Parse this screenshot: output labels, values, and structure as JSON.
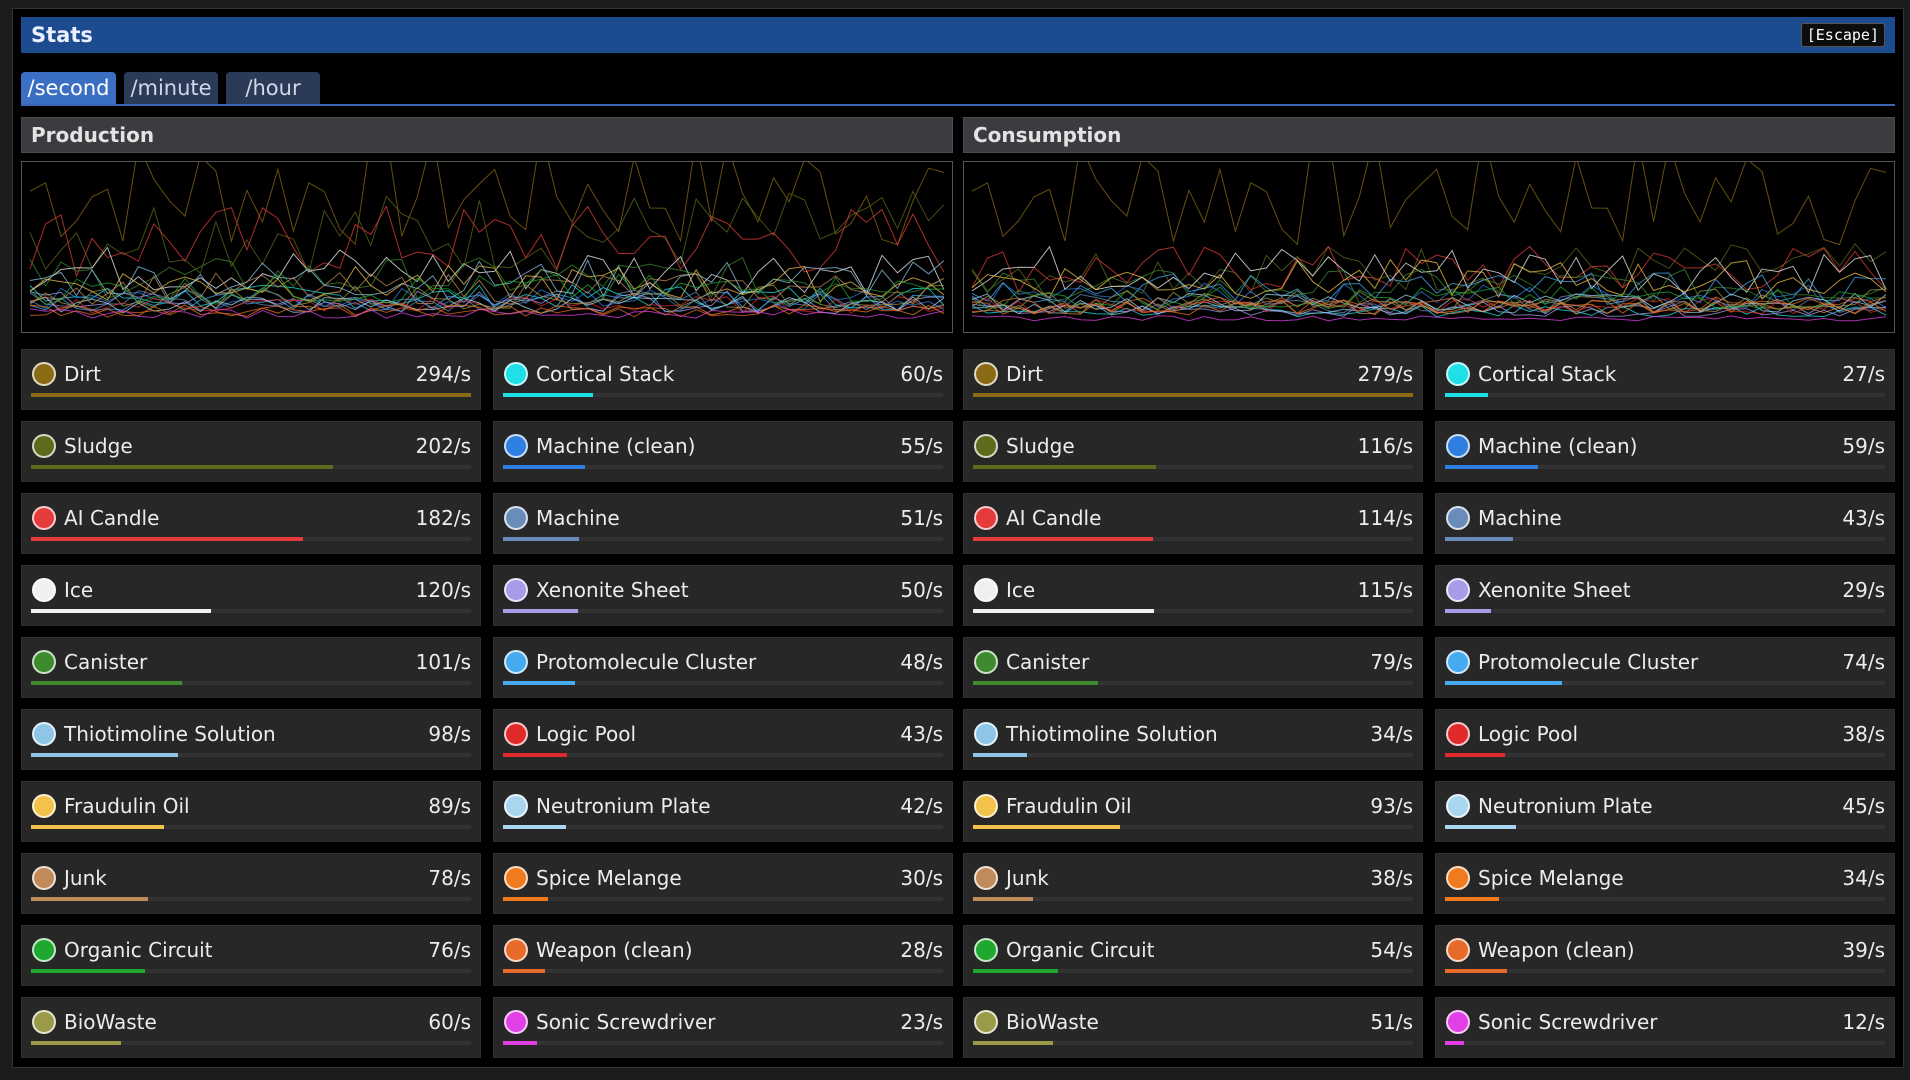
{
  "window": {
    "title": "Stats",
    "close_hint": "[Escape]"
  },
  "tabs": [
    {
      "label": "/second",
      "active": true
    },
    {
      "label": "/minute",
      "active": false
    },
    {
      "label": "/hour",
      "active": false
    }
  ],
  "production": {
    "title": "Production",
    "max": 294,
    "items": [
      {
        "name": "Dirt",
        "rate": "294/s",
        "value": 294,
        "color": "#8a6a14",
        "icon": "dirt-icon"
      },
      {
        "name": "Cortical Stack",
        "rate": "60/s",
        "value": 60,
        "color": "#1ee0e6",
        "icon": "cortical-stack-icon"
      },
      {
        "name": "Sludge",
        "rate": "202/s",
        "value": 202,
        "color": "#5e6a1c",
        "icon": "sludge-icon"
      },
      {
        "name": "Machine (clean)",
        "rate": "55/s",
        "value": 55,
        "color": "#2e7fe0",
        "icon": "machine-clean-icon"
      },
      {
        "name": "AI Candle",
        "rate": "182/s",
        "value": 182,
        "color": "#e53b3b",
        "icon": "ai-candle-icon"
      },
      {
        "name": "Machine",
        "rate": "51/s",
        "value": 51,
        "color": "#6a8cb8",
        "icon": "machine-icon"
      },
      {
        "name": "Ice",
        "rate": "120/s",
        "value": 120,
        "color": "#f0f0f0",
        "icon": "ice-icon"
      },
      {
        "name": "Xenonite Sheet",
        "rate": "50/s",
        "value": 50,
        "color": "#a99be8",
        "icon": "xenonite-sheet-icon"
      },
      {
        "name": "Canister",
        "rate": "101/s",
        "value": 101,
        "color": "#3d8a2f",
        "icon": "canister-icon"
      },
      {
        "name": "Protomolecule Cluster",
        "rate": "48/s",
        "value": 48,
        "color": "#45aaf0",
        "icon": "protomolecule-cluster-icon"
      },
      {
        "name": "Thiotimoline Solution",
        "rate": "98/s",
        "value": 98,
        "color": "#8fc6e8",
        "icon": "thiotimoline-solution-icon"
      },
      {
        "name": "Logic Pool",
        "rate": "43/s",
        "value": 43,
        "color": "#e02a2a",
        "icon": "logic-pool-icon"
      },
      {
        "name": "Fraudulin Oil",
        "rate": "89/s",
        "value": 89,
        "color": "#f2c24a",
        "icon": "fraudulin-oil-icon"
      },
      {
        "name": "Neutronium Plate",
        "rate": "42/s",
        "value": 42,
        "color": "#a8d6ee",
        "icon": "neutronium-plate-icon"
      },
      {
        "name": "Junk",
        "rate": "78/s",
        "value": 78,
        "color": "#c08a5a",
        "icon": "junk-icon"
      },
      {
        "name": "Spice Melange",
        "rate": "30/s",
        "value": 30,
        "color": "#f07a1e",
        "icon": "spice-melange-icon"
      },
      {
        "name": "Organic Circuit",
        "rate": "76/s",
        "value": 76,
        "color": "#1fa82f",
        "icon": "organic-circuit-icon"
      },
      {
        "name": "Weapon (clean)",
        "rate": "28/s",
        "value": 28,
        "color": "#e86a2a",
        "icon": "weapon-clean-icon"
      },
      {
        "name": "BioWaste",
        "rate": "60/s",
        "value": 60,
        "color": "#9a9a48",
        "icon": "biowaste-icon"
      },
      {
        "name": "Sonic Screwdriver",
        "rate": "23/s",
        "value": 23,
        "color": "#e040e6",
        "icon": "sonic-screwdriver-icon"
      }
    ]
  },
  "consumption": {
    "title": "Consumption",
    "max": 279,
    "items": [
      {
        "name": "Dirt",
        "rate": "279/s",
        "value": 279,
        "color": "#8a6a14",
        "icon": "dirt-icon"
      },
      {
        "name": "Cortical Stack",
        "rate": "27/s",
        "value": 27,
        "color": "#1ee0e6",
        "icon": "cortical-stack-icon"
      },
      {
        "name": "Sludge",
        "rate": "116/s",
        "value": 116,
        "color": "#5e6a1c",
        "icon": "sludge-icon"
      },
      {
        "name": "Machine (clean)",
        "rate": "59/s",
        "value": 59,
        "color": "#2e7fe0",
        "icon": "machine-clean-icon"
      },
      {
        "name": "AI Candle",
        "rate": "114/s",
        "value": 114,
        "color": "#e53b3b",
        "icon": "ai-candle-icon"
      },
      {
        "name": "Machine",
        "rate": "43/s",
        "value": 43,
        "color": "#6a8cb8",
        "icon": "machine-icon"
      },
      {
        "name": "Ice",
        "rate": "115/s",
        "value": 115,
        "color": "#f0f0f0",
        "icon": "ice-icon"
      },
      {
        "name": "Xenonite Sheet",
        "rate": "29/s",
        "value": 29,
        "color": "#a99be8",
        "icon": "xenonite-sheet-icon"
      },
      {
        "name": "Canister",
        "rate": "79/s",
        "value": 79,
        "color": "#3d8a2f",
        "icon": "canister-icon"
      },
      {
        "name": "Protomolecule Cluster",
        "rate": "74/s",
        "value": 74,
        "color": "#45aaf0",
        "icon": "protomolecule-cluster-icon"
      },
      {
        "name": "Thiotimoline Solution",
        "rate": "34/s",
        "value": 34,
        "color": "#8fc6e8",
        "icon": "thiotimoline-solution-icon"
      },
      {
        "name": "Logic Pool",
        "rate": "38/s",
        "value": 38,
        "color": "#e02a2a",
        "icon": "logic-pool-icon"
      },
      {
        "name": "Fraudulin Oil",
        "rate": "93/s",
        "value": 93,
        "color": "#f2c24a",
        "icon": "fraudulin-oil-icon"
      },
      {
        "name": "Neutronium Plate",
        "rate": "45/s",
        "value": 45,
        "color": "#a8d6ee",
        "icon": "neutronium-plate-icon"
      },
      {
        "name": "Junk",
        "rate": "38/s",
        "value": 38,
        "color": "#c08a5a",
        "icon": "junk-icon"
      },
      {
        "name": "Spice Melange",
        "rate": "34/s",
        "value": 34,
        "color": "#f07a1e",
        "icon": "spice-melange-icon"
      },
      {
        "name": "Organic Circuit",
        "rate": "54/s",
        "value": 54,
        "color": "#1fa82f",
        "icon": "organic-circuit-icon"
      },
      {
        "name": "Weapon (clean)",
        "rate": "39/s",
        "value": 39,
        "color": "#e86a2a",
        "icon": "weapon-clean-icon"
      },
      {
        "name": "BioWaste",
        "rate": "51/s",
        "value": 51,
        "color": "#9a9a48",
        "icon": "biowaste-icon"
      },
      {
        "name": "Sonic Screwdriver",
        "rate": "12/s",
        "value": 12,
        "color": "#e040e6",
        "icon": "sonic-screwdriver-icon"
      }
    ]
  }
}
